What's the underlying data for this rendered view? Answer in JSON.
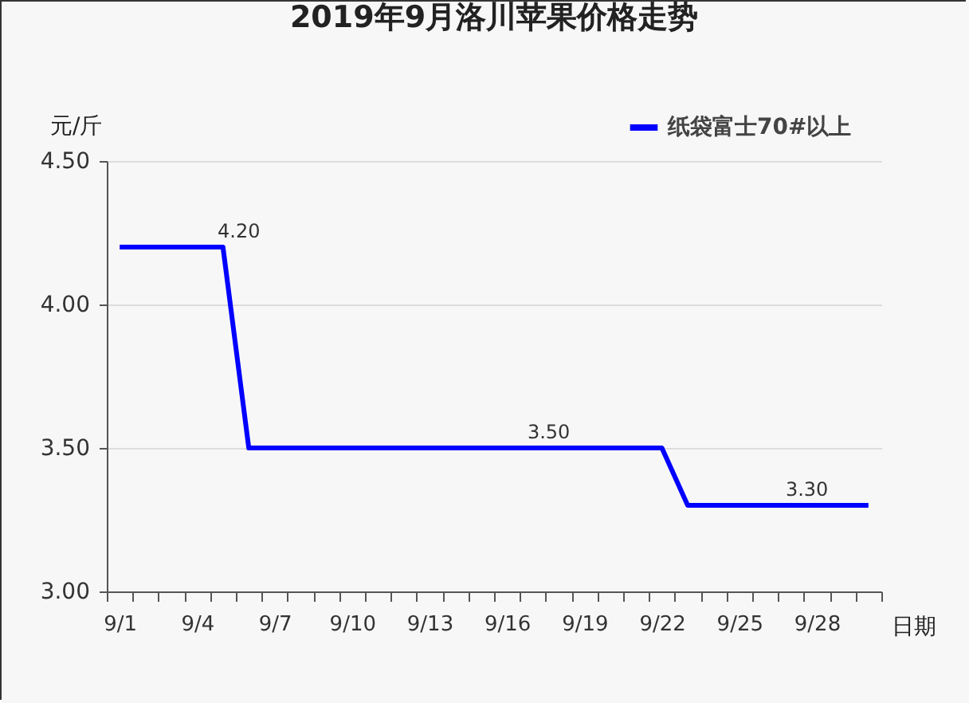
{
  "chart_data": {
    "type": "line",
    "title": "2019年9月洛川苹果价格走势",
    "xlabel": "日期",
    "ylabel": "元/斤",
    "categories": [
      "9/1",
      null,
      null,
      "9/4",
      null,
      null,
      "9/7",
      null,
      null,
      "9/10",
      null,
      null,
      "9/13",
      null,
      null,
      "9/16",
      null,
      null,
      "9/19",
      null,
      null,
      "9/22",
      null,
      null,
      "9/25",
      null,
      null,
      "9/28",
      null,
      null
    ],
    "series": [
      {
        "name": "纸袋富士70#以上",
        "color": "#0000ff",
        "values": [
          4.2,
          4.2,
          4.2,
          4.2,
          4.2,
          3.5,
          3.5,
          3.5,
          3.5,
          3.5,
          3.5,
          3.5,
          3.5,
          3.5,
          3.5,
          3.5,
          3.5,
          3.5,
          3.5,
          3.5,
          3.5,
          3.5,
          3.3,
          3.3,
          3.3,
          3.3,
          3.3,
          3.3,
          3.3,
          3.3
        ],
        "value_labels": [
          null,
          null,
          null,
          null,
          "4.20",
          null,
          null,
          null,
          null,
          null,
          null,
          null,
          null,
          null,
          null,
          null,
          "3.50",
          null,
          null,
          null,
          null,
          null,
          null,
          null,
          null,
          null,
          "3.30",
          null,
          null,
          null
        ]
      }
    ],
    "ylim": [
      3,
      4.5
    ],
    "yticks": [
      {
        "value": 3,
        "label": "3.00"
      },
      {
        "value": 3.5,
        "label": "3.50"
      },
      {
        "value": 4,
        "label": "4.00"
      },
      {
        "value": 4.5,
        "label": "4.50"
      }
    ],
    "grid": "y",
    "legend": "top right",
    "line_style": "solid"
  }
}
